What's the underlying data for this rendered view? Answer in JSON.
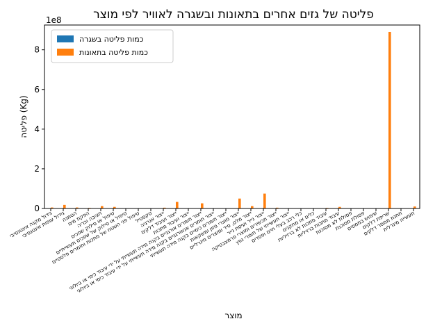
{
  "chart_data": {
    "type": "bar",
    "title": "פליטה של גזים אחרים בתאונות ובשגרה לאוויר לפי מוצר",
    "xlabel": "מוצר",
    "ylabel": "פליטה (Kg)",
    "y_scale_label": "1e8",
    "ylim": [
      0,
      9.25
    ],
    "y_unit_multiplier": 100000000,
    "yticks": [
      "0",
      "2",
      "4",
      "6",
      "8"
    ],
    "grid": false,
    "legend_position": "top-left",
    "categories": [
      "גידול מקנה אינטנסיבי",
      "גידול עופות אינטנסיבי",
      "הטמנה",
      "הפקת מים",
      "חציבה וכריה",
      "טיפול או סילוק שפכים",
      "טיפול או סילוק של שפכים תעשייתיים",
      "טיפול פני השטח של מתכות וחומרים פלסטיים",
      "טקסטיל",
      "ייצור אנרגיה",
      "ייצור ועיבוד דלקים",
      "ייצור ועיבוד מתכות",
      "ייצור חומרים אורגניים בקנה מידה תעשייתי על ידי עיבוד כימי או ביולוגי",
      "ייצור חומרים אנאורגניים בקנה מידה תעשייתי על ידי עיבוד כימי או ביולוגי",
      "ייצור חומרים כימיים בקנה מידה תעשייתי",
      "ייצור מוצרי מזון ומשקאות",
      "ייצור מלט, סיד ומוצרים מינרליים",
      "ייצור נייר ועיסת נייר",
      "ייצור תכשירים ומוצרי פרמצבטיקה",
      "ייצור תעשייתי של חומרי נפץ",
      "כלי רכב בעלי חיים ופסדים",
      "כלים או מתקנים",
      "עיבוד מתכות לא ברזיליות",
      "עיבוד מתכות ברזיליות",
      "פסולת לא מסוכנת",
      "פסולת מסוכנת",
      "שימוש בממסים",
      "שריפת דלקים",
      "תחנת ממסר דלקים",
      "תעשייה מינרלית"
    ],
    "series": [
      {
        "name": "כמות פליטה בשגרה",
        "color": "#1f77b4",
        "values": [
          0,
          0,
          0.01,
          0,
          0,
          0,
          0,
          0,
          0,
          0,
          0,
          0,
          0,
          0,
          0,
          0,
          0,
          0,
          0,
          0,
          0,
          0,
          0,
          0,
          0,
          0,
          0,
          0,
          0,
          0
        ]
      },
      {
        "name": "כמות פליטה בתאונות",
        "color": "#ff7f0e",
        "values": [
          0.05,
          0.18,
          0.05,
          0.03,
          0.12,
          0.08,
          0,
          0,
          0,
          0.04,
          0.33,
          0,
          0.26,
          0,
          0,
          0.5,
          0.12,
          0.75,
          0.04,
          0,
          0,
          0,
          0.03,
          0.08,
          0,
          0,
          0,
          8.9,
          0,
          0.1
        ]
      }
    ]
  }
}
